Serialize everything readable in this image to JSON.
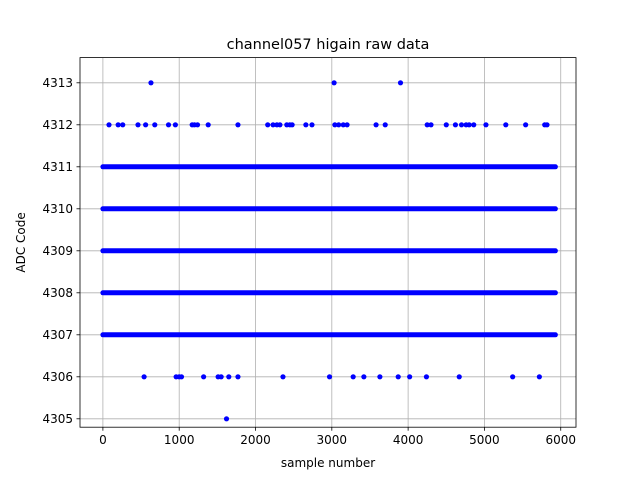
{
  "chart_data": {
    "type": "scatter",
    "title": "channel057 higain raw data",
    "xlabel": "sample number",
    "ylabel": "ADC Code",
    "xlim": [
      -300,
      6200
    ],
    "ylim": [
      4304.8,
      4313.6
    ],
    "xticks": [
      0,
      1000,
      2000,
      3000,
      4000,
      5000,
      6000
    ],
    "yticks": [
      4305,
      4306,
      4307,
      4308,
      4309,
      4310,
      4311,
      4312,
      4313
    ],
    "grid": true,
    "marker_color": "#0000ff",
    "dense_levels": {
      "values": [
        4307,
        4308,
        4309,
        4310,
        4311
      ],
      "x_range": [
        0,
        5930
      ]
    },
    "sparse_points": [
      {
        "y": 4313,
        "x": [
          630,
          3030,
          3900
        ]
      },
      {
        "y": 4312,
        "x": [
          80,
          200,
          260,
          460,
          560,
          680,
          860,
          950,
          1170,
          1200,
          1240,
          1380,
          1770,
          2160,
          2230,
          2280,
          2320,
          2410,
          2450,
          2480,
          2660,
          2740,
          3040,
          3090,
          3150,
          3200,
          3580,
          3700,
          4250,
          4300,
          4500,
          4620,
          4700,
          4760,
          4800,
          4860,
          5020,
          5280,
          5540,
          5790,
          5820
        ]
      },
      {
        "y": 4306,
        "x": [
          540,
          960,
          1000,
          1030,
          1320,
          1510,
          1550,
          1650,
          1770,
          2360,
          2970,
          3280,
          3420,
          3630,
          3870,
          4020,
          4240,
          4670,
          5370,
          5720
        ]
      },
      {
        "y": 4305,
        "x": [
          1620
        ]
      }
    ]
  }
}
